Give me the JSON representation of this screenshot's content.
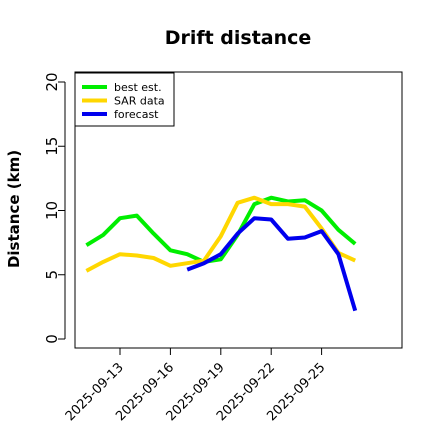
{
  "chart_data": {
    "type": "line",
    "title": "Drift distance",
    "xlabel": "",
    "ylabel": "Distance (km)",
    "ylim": [
      0,
      20
    ],
    "yticks": [
      "0",
      "5",
      "10",
      "15",
      "20"
    ],
    "xticks": [
      "2025-09-13",
      "2025-09-16",
      "2025-09-19",
      "2025-09-22",
      "2025-09-25"
    ],
    "legend_position": "top-left",
    "series": [
      {
        "name": "best est.",
        "color": "#00ee00",
        "x": [
          "2025-09-11",
          "2025-09-12",
          "2025-09-13",
          "2025-09-14",
          "2025-09-15",
          "2025-09-16",
          "2025-09-17",
          "2025-09-18",
          "2025-09-19",
          "2025-09-20",
          "2025-09-21",
          "2025-09-22",
          "2025-09-23",
          "2025-09-24",
          "2025-09-25",
          "2025-09-26",
          "2025-09-27",
          "2025-09-28"
        ],
        "values": [
          7.3,
          8.1,
          9.4,
          9.6,
          8.2,
          6.9,
          6.6,
          6.0,
          6.2,
          8.1,
          10.5,
          11.0,
          10.7,
          10.8,
          10.0,
          8.5,
          7.4,
          null
        ]
      },
      {
        "name": "SAR data",
        "color": "#ffd700",
        "x": [
          "2025-09-11",
          "2025-09-12",
          "2025-09-13",
          "2025-09-14",
          "2025-09-15",
          "2025-09-16",
          "2025-09-17",
          "2025-09-18",
          "2025-09-19",
          "2025-09-20",
          "2025-09-21",
          "2025-09-22",
          "2025-09-23",
          "2025-09-24",
          "2025-09-25",
          "2025-09-26",
          "2025-09-27",
          "2025-09-28"
        ],
        "values": [
          5.3,
          6.0,
          6.6,
          6.5,
          6.3,
          5.7,
          5.9,
          6.1,
          8.0,
          10.6,
          11.0,
          10.5,
          10.5,
          10.3,
          8.6,
          6.7,
          6.1,
          null
        ]
      },
      {
        "name": "forecast",
        "color": "#0000ee",
        "x": [
          "2025-09-17",
          "2025-09-18",
          "2025-09-19",
          "2025-09-20",
          "2025-09-21",
          "2025-09-22",
          "2025-09-23",
          "2025-09-24",
          "2025-09-25",
          "2025-09-26",
          "2025-09-27"
        ],
        "values": [
          5.4,
          5.9,
          6.6,
          8.2,
          9.4,
          9.3,
          7.8,
          7.9,
          8.4,
          6.6,
          2.2
        ]
      }
    ]
  }
}
